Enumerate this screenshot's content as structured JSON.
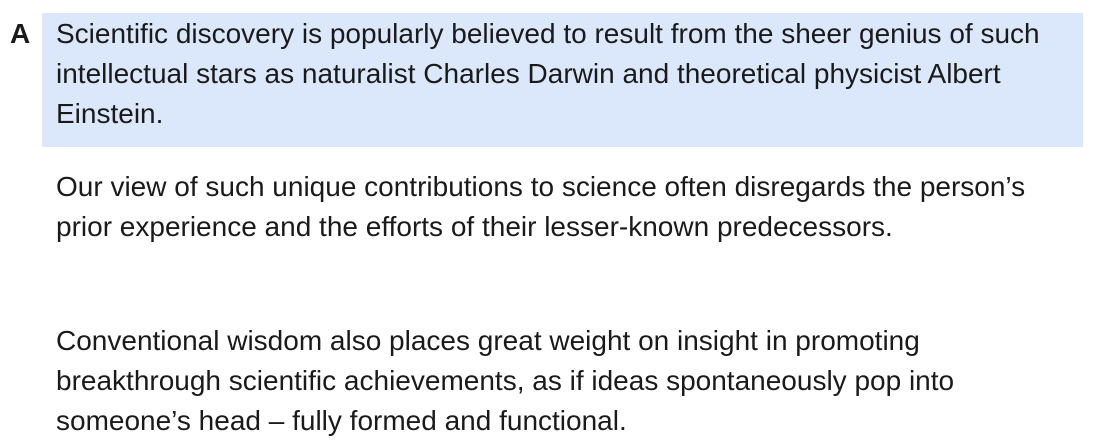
{
  "section": {
    "letter": "A",
    "paragraphs": [
      "Scientific discovery is popularly believed to result from the sheer genius of such intellectual stars as naturalist Charles Darwin and theoretical physicist Albert Einstein.",
      "Our view of such unique contributions to science often disregards the person’s prior experience and the efforts of their lesser-known predecessors.",
      "Conventional wisdom also places great weight on insight in promoting breakthrough scientific achievements, as if ideas spontaneously pop into someone’s head – fully formed and functional."
    ],
    "highlight_color": "#dbe8fb"
  }
}
